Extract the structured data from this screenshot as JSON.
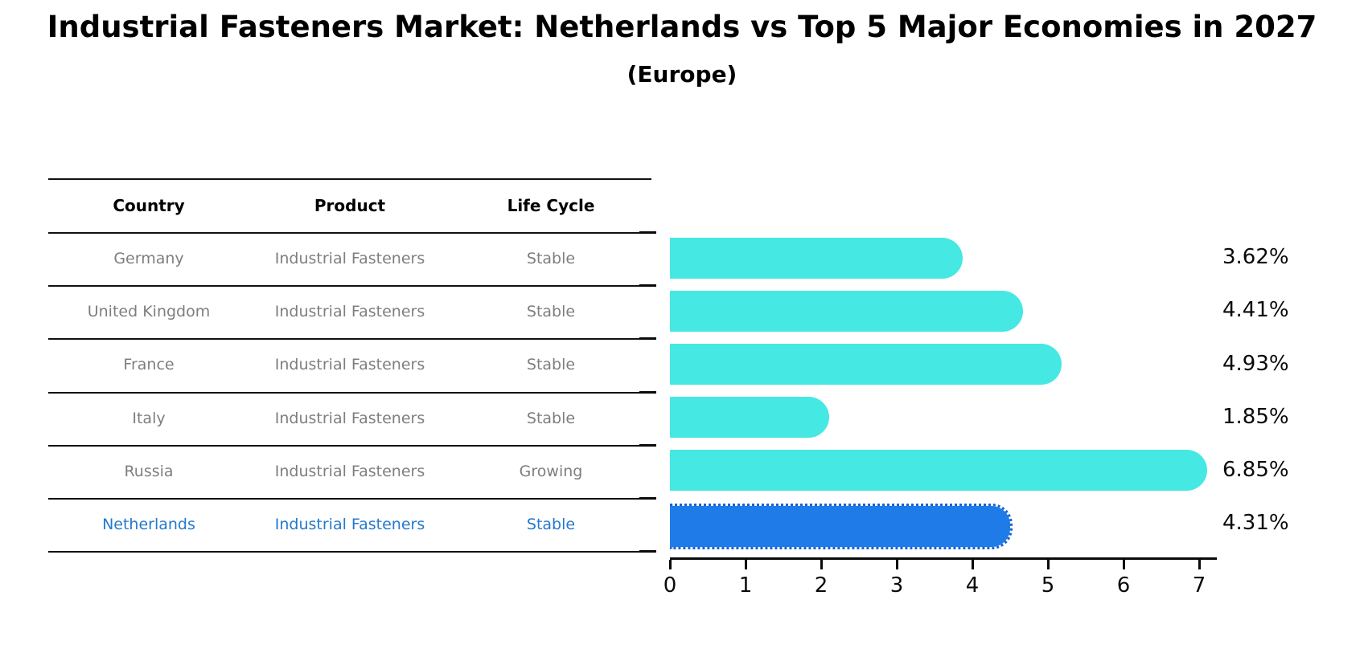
{
  "title": "Industrial Fasteners Market: Netherlands vs Top 5 Major Economies in 2027",
  "subtitle": "(Europe)",
  "table": {
    "columns": [
      "Country",
      "Product",
      "Life Cycle"
    ],
    "rows": [
      {
        "country": "Germany",
        "product": "Industrial Fasteners",
        "life_cycle": "Stable",
        "highlight": false
      },
      {
        "country": "United Kingdom",
        "product": "Industrial Fasteners",
        "life_cycle": "Stable",
        "highlight": false
      },
      {
        "country": "France",
        "product": "Industrial Fasteners",
        "life_cycle": "Stable",
        "highlight": false
      },
      {
        "country": "Italy",
        "product": "Industrial Fasteners",
        "life_cycle": "Stable",
        "highlight": false
      },
      {
        "country": "Russia",
        "product": "Industrial Fasteners",
        "life_cycle": "Growing",
        "highlight": false
      },
      {
        "country": "Netherlands",
        "product": "Industrial Fasteners",
        "life_cycle": "Stable",
        "highlight": true
      }
    ]
  },
  "chart_data": {
    "type": "bar",
    "orientation": "horizontal",
    "title": "Industrial Fasteners Market: Netherlands vs Top 5 Major Economies in 2027",
    "subtitle": "(Europe)",
    "categories": [
      "Germany",
      "United Kingdom",
      "France",
      "Italy",
      "Russia",
      "Netherlands"
    ],
    "values": [
      3.62,
      4.41,
      4.93,
      1.85,
      6.85,
      4.31
    ],
    "value_labels": [
      "3.62%",
      "4.41%",
      "4.93%",
      "1.85%",
      "6.85%",
      "4.31%"
    ],
    "x_tick_labels": [
      "0",
      "1",
      "2",
      "3",
      "4",
      "5",
      "6",
      "7"
    ],
    "xlim": [
      0,
      7.2
    ],
    "xlabel": "",
    "ylabel": "",
    "grid": false,
    "legend": "none",
    "bar_color": "#45e8e2",
    "highlight_bar_color": "#1e7be8",
    "highlight_index": 5,
    "highlight_text_color": "#2478ce",
    "row_text_color": "#7e7e7e",
    "axis_color": "#0a0a0a"
  }
}
